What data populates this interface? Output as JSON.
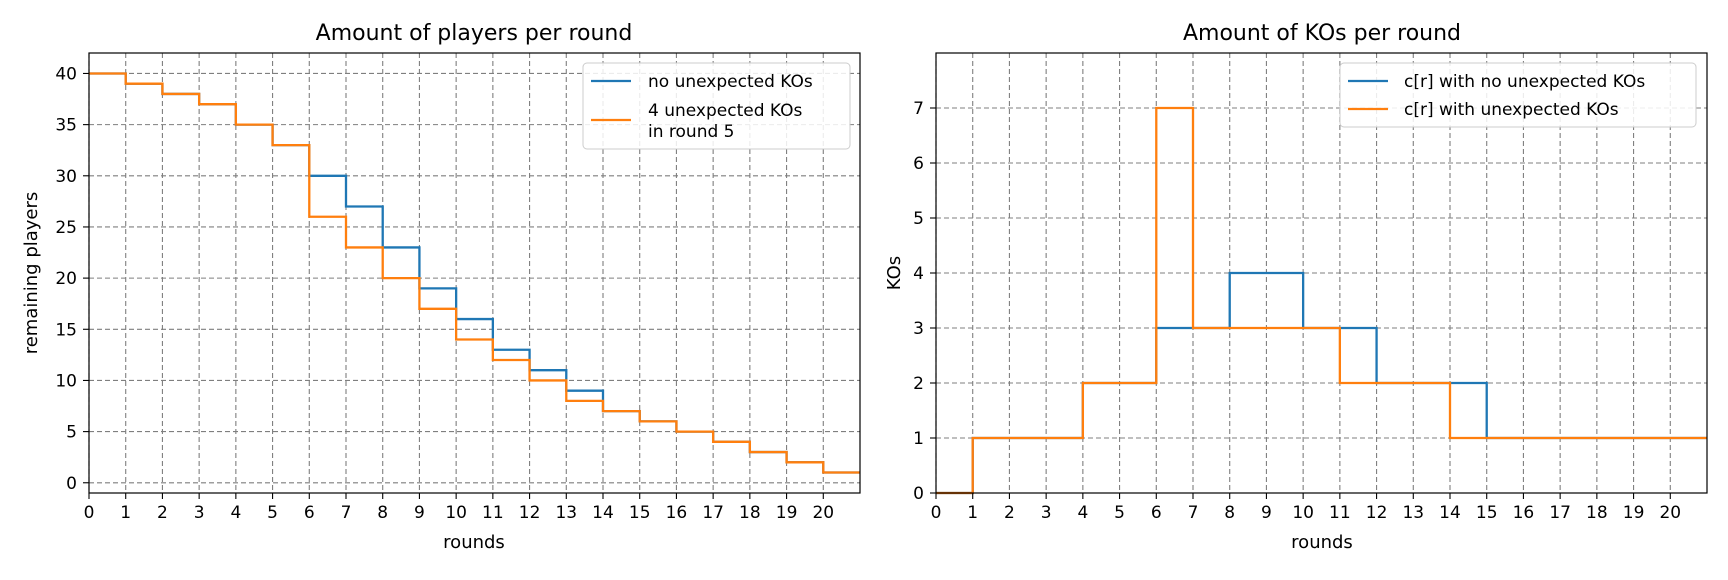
{
  "chart_data": [
    {
      "type": "line",
      "step": true,
      "title": "Amount of players per round",
      "xlabel": "rounds",
      "ylabel": "remaining players",
      "xlim": [
        0,
        21
      ],
      "ylim": [
        -1,
        42
      ],
      "xticks": [
        0,
        1,
        2,
        3,
        4,
        5,
        6,
        7,
        8,
        9,
        10,
        11,
        12,
        13,
        14,
        15,
        16,
        17,
        18,
        19,
        20
      ],
      "yticks": [
        0,
        5,
        10,
        15,
        20,
        25,
        30,
        35,
        40
      ],
      "grid": true,
      "legend_position": "top-right",
      "x": [
        0,
        1,
        2,
        3,
        4,
        5,
        6,
        7,
        8,
        9,
        10,
        11,
        12,
        13,
        14,
        15,
        16,
        17,
        18,
        19,
        20,
        21
      ],
      "series": [
        {
          "name": "no unexpected KOs",
          "color": "#1f77b4",
          "values": [
            40,
            39,
            38,
            37,
            35,
            33,
            30,
            27,
            23,
            19,
            16,
            13,
            11,
            9,
            7,
            6,
            5,
            4,
            3,
            2,
            1,
            1
          ]
        },
        {
          "name": "4 unexpected KOs\nin round 5",
          "color": "#ff7f0e",
          "values": [
            40,
            39,
            38,
            37,
            35,
            33,
            26,
            23,
            20,
            17,
            14,
            12,
            10,
            8,
            7,
            6,
            5,
            4,
            3,
            2,
            1,
            1
          ]
        }
      ]
    },
    {
      "type": "line",
      "step": true,
      "title": "Amount of KOs per round",
      "xlabel": "rounds",
      "ylabel": "KOs",
      "xlim": [
        0,
        21
      ],
      "ylim": [
        0,
        8
      ],
      "xticks": [
        0,
        1,
        2,
        3,
        4,
        5,
        6,
        7,
        8,
        9,
        10,
        11,
        12,
        13,
        14,
        15,
        16,
        17,
        18,
        19,
        20
      ],
      "yticks": [
        0,
        1,
        2,
        3,
        4,
        5,
        6,
        7
      ],
      "grid": true,
      "legend_position": "top-right",
      "x": [
        0,
        1,
        2,
        3,
        4,
        5,
        6,
        7,
        8,
        9,
        10,
        11,
        12,
        13,
        14,
        15,
        16,
        17,
        18,
        19,
        20,
        21
      ],
      "series": [
        {
          "name": "c[r] with no unexpected KOs",
          "color": "#1f77b4",
          "values": [
            0,
            1,
            1,
            1,
            2,
            2,
            3,
            3,
            4,
            4,
            3,
            3,
            2,
            2,
            2,
            1,
            1,
            1,
            1,
            1,
            1,
            1
          ]
        },
        {
          "name": "c[r] with unexpected KOs",
          "color": "#ff7f0e",
          "values": [
            0,
            1,
            1,
            1,
            2,
            2,
            7,
            3,
            3,
            3,
            3,
            2,
            2,
            2,
            1,
            1,
            1,
            1,
            1,
            1,
            1,
            1
          ]
        }
      ]
    }
  ]
}
